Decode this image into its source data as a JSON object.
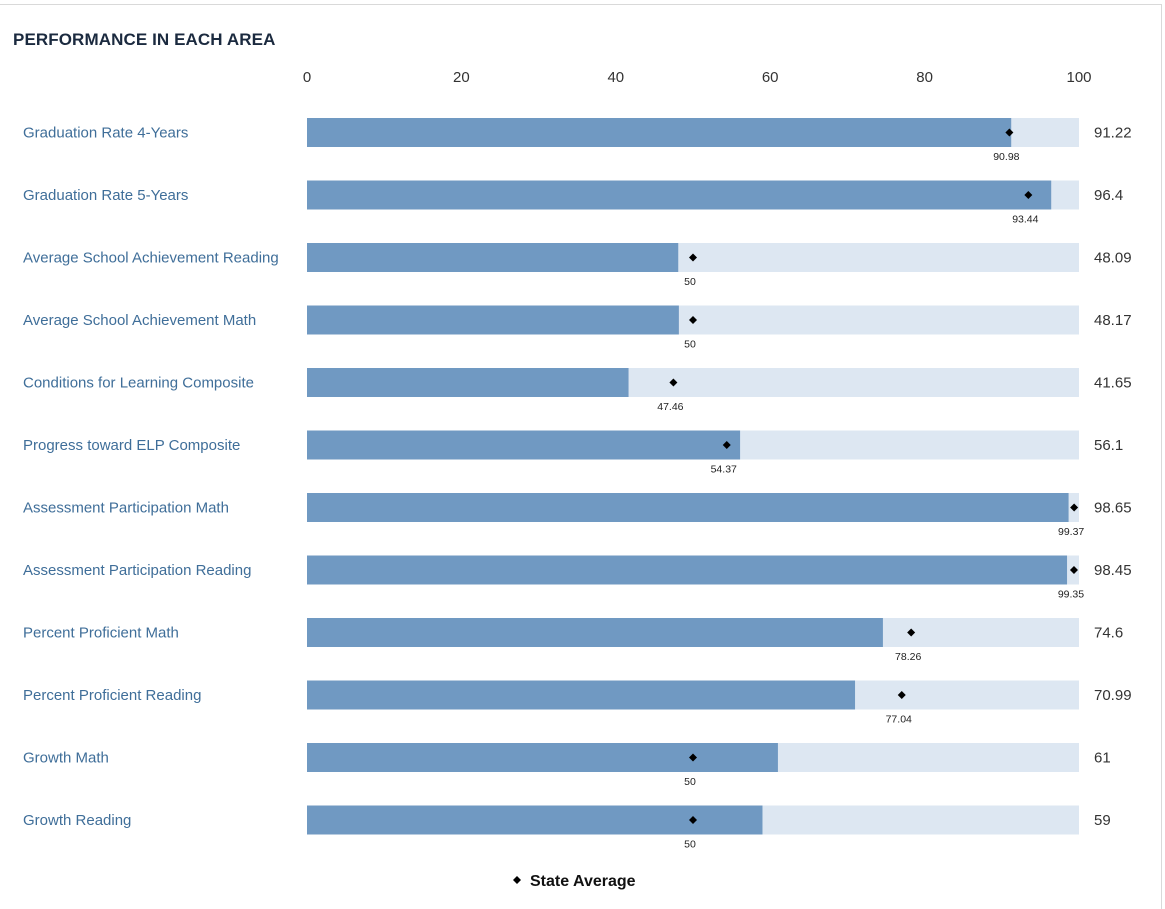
{
  "chart_data": {
    "type": "bar",
    "title": "PERFORMANCE IN EACH AREA",
    "xlim": [
      0,
      100
    ],
    "ticks": [
      "0",
      "20",
      "40",
      "60",
      "80",
      "100"
    ],
    "tick_values": [
      0,
      20,
      40,
      60,
      80,
      100
    ],
    "categories": [
      "Graduation Rate 4-Years",
      "Graduation Rate 5-Years",
      "Average School Achievement Reading",
      "Average School Achievement Math",
      "Conditions for Learning Composite",
      "Progress toward ELP Composite",
      "Assessment Participation Math",
      "Assessment Participation Reading",
      "Percent Proficient Math",
      "Percent Proficient Reading",
      "Growth Math",
      "Growth Reading"
    ],
    "values": [
      91.22,
      96.4,
      48.09,
      48.17,
      41.65,
      56.1,
      98.65,
      98.45,
      74.6,
      70.99,
      61,
      59
    ],
    "value_labels": [
      "91.22",
      "96.4",
      "48.09",
      "48.17",
      "41.65",
      "56.1",
      "98.65",
      "98.45",
      "74.6",
      "70.99",
      "61",
      "59"
    ],
    "state_average": [
      90.98,
      93.44,
      50,
      50,
      47.46,
      54.37,
      99.37,
      99.35,
      78.26,
      77.04,
      50,
      50
    ],
    "state_average_labels": [
      "90.98",
      "93.44",
      "50",
      "50",
      "47.46",
      "54.37",
      "99.37",
      "99.35",
      "78.26",
      "77.04",
      "50",
      "50"
    ],
    "legend": {
      "label": "State Average",
      "placement": "bottom"
    },
    "colors": {
      "bar": "#7099c2",
      "track": "#dde7f2",
      "marker": "#000000",
      "category_text": "#3f6e99"
    },
    "grid": false
  }
}
